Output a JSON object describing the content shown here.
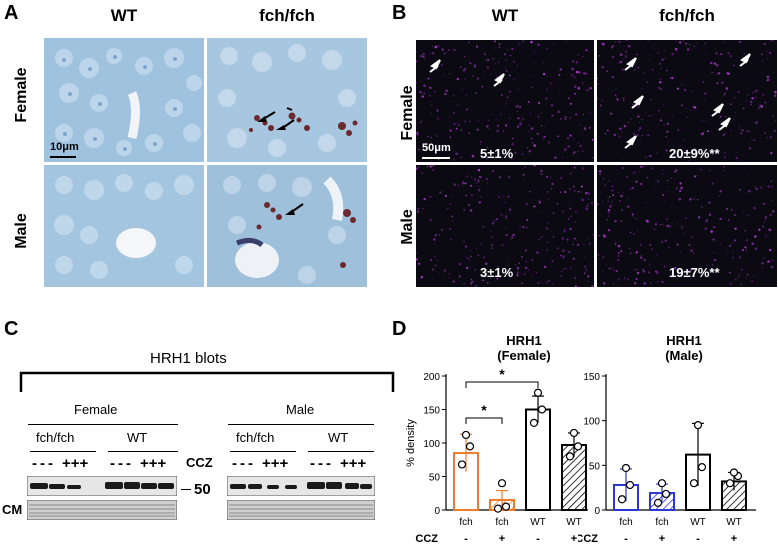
{
  "panels": {
    "A": {
      "letter": "A",
      "col_labels": [
        "WT",
        "fch/fch"
      ],
      "row_labels": [
        "Female",
        "Male"
      ],
      "scale_bar": "10μm"
    },
    "B": {
      "letter": "B",
      "col_labels": [
        "WT",
        "fch/fch"
      ],
      "row_labels": [
        "Female",
        "Male"
      ],
      "scale_bar": "50μm",
      "stats": {
        "female_wt": "5±1%",
        "female_fch": "20±9%**",
        "male_wt": "3±1%",
        "male_fch": "19±7%**"
      }
    },
    "C": {
      "letter": "C",
      "title": "HRH1 blots",
      "groups": [
        "Female",
        "Male"
      ],
      "genotypes": [
        "fch/fch",
        "WT"
      ],
      "treatment_label": "CCZ",
      "minus_signs": "---",
      "plus_signs": "+++",
      "size_marker": "50",
      "loading_label": "CM"
    },
    "D": {
      "letter": "D"
    }
  },
  "chart_data": [
    {
      "type": "bar",
      "title": "HRH1\n(Female)",
      "title_line1": "HRH1",
      "title_line2": "(Female)",
      "ylabel": "% density",
      "ylim": [
        0,
        200
      ],
      "yticks": [
        "0",
        "50",
        "100",
        "150",
        "200"
      ],
      "categories": [
        "fch",
        "fch",
        "WT",
        "WT"
      ],
      "ccz": [
        "-",
        "+",
        "-",
        "+"
      ],
      "values": [
        85,
        15,
        150,
        97
      ],
      "errors": [
        28,
        14,
        20,
        18
      ],
      "points": [
        [
          68,
          95,
          112
        ],
        [
          2,
          5,
          40
        ],
        [
          130,
          150,
          175
        ],
        [
          80,
          95,
          115
        ]
      ],
      "colors": [
        "#ee7d2b",
        "#ee7d2b",
        "#000000",
        "#000000"
      ],
      "hatched": [
        false,
        true,
        false,
        true
      ],
      "significance": [
        {
          "from": 0,
          "to": 2,
          "label": "*"
        },
        {
          "from": 0,
          "to": 1,
          "label": "*"
        }
      ],
      "ccz_label": "CCZ"
    },
    {
      "type": "bar",
      "title": "HRH1\n(Male)",
      "title_line1": "HRH1",
      "title_line2": "(Male)",
      "ylabel": "",
      "ylim": [
        0,
        150
      ],
      "yticks": [
        "0",
        "50",
        "100",
        "150"
      ],
      "categories": [
        "fch",
        "fch",
        "WT",
        "WT"
      ],
      "ccz": [
        "-",
        "+",
        "-",
        "+"
      ],
      "values": [
        28,
        19,
        62,
        32
      ],
      "errors": [
        18,
        10,
        35,
        10
      ],
      "points": [
        [
          12,
          28,
          47
        ],
        [
          8,
          18,
          30
        ],
        [
          30,
          48,
          95
        ],
        [
          30,
          38,
          42
        ]
      ],
      "colors": [
        "#2b38d6",
        "#2b38d6",
        "#000000",
        "#000000"
      ],
      "hatched": [
        false,
        true,
        false,
        true
      ],
      "significance": [],
      "ccz_label": "CCZ"
    }
  ]
}
